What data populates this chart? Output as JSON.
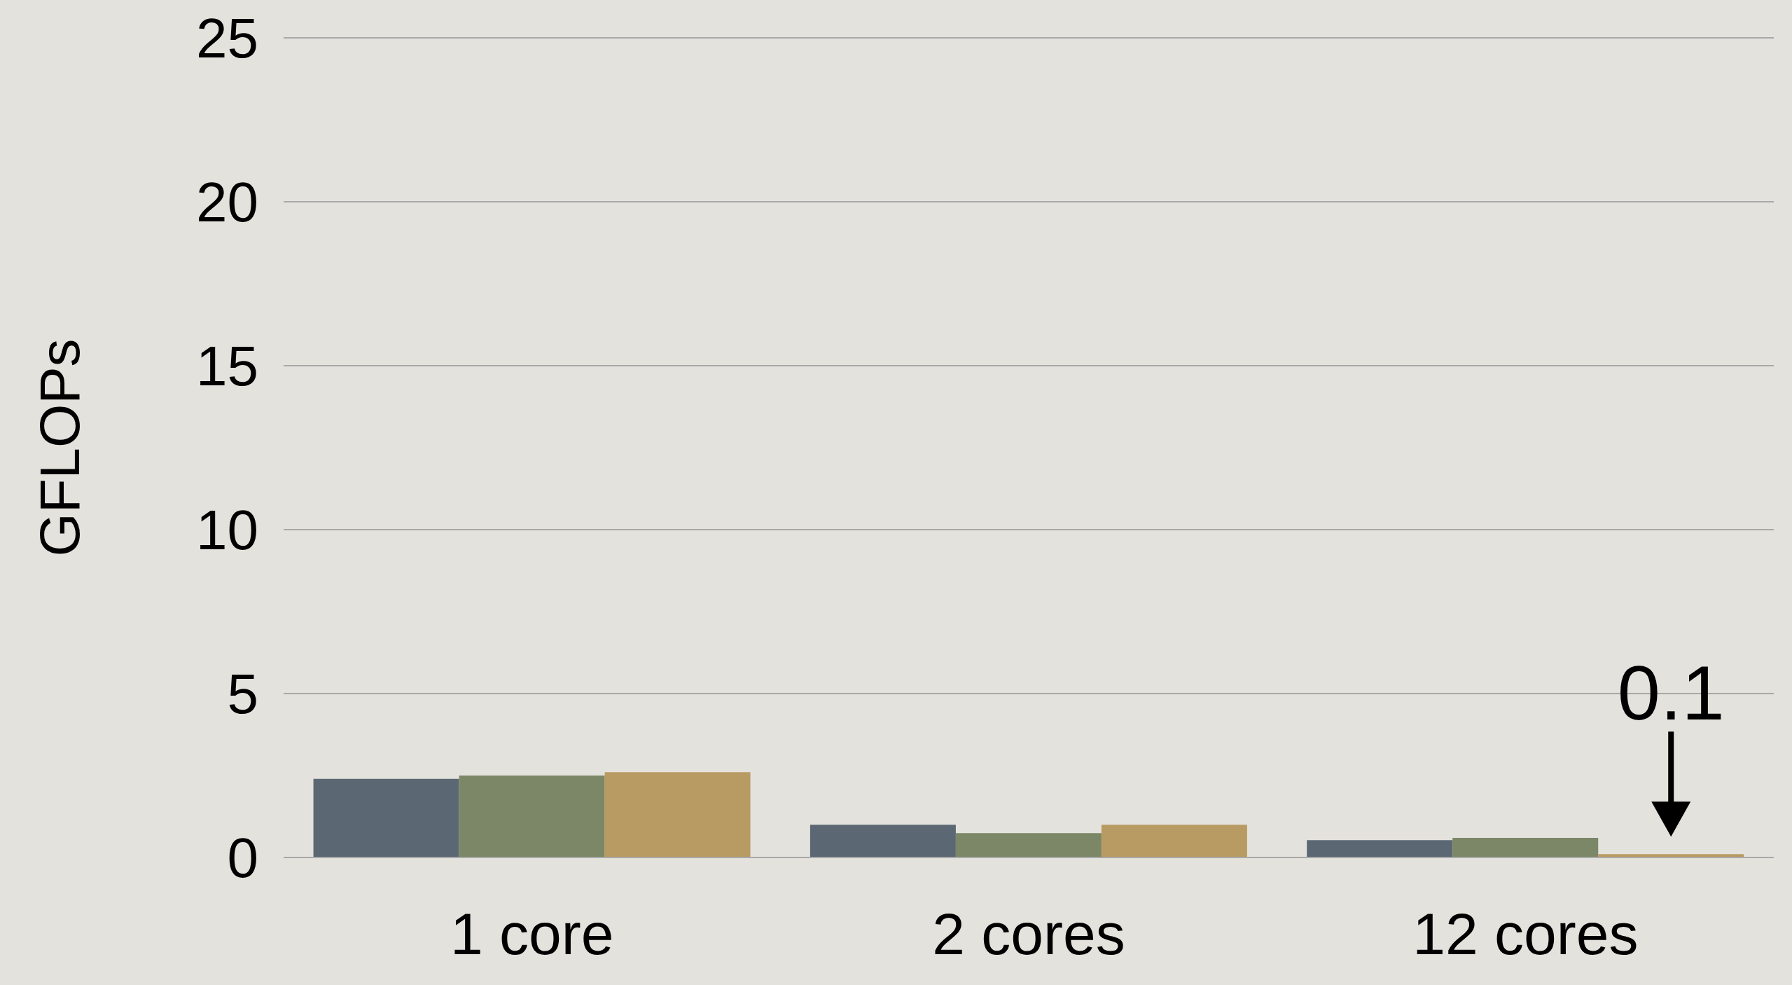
{
  "chart_data": {
    "type": "bar",
    "ylabel": "GFLOPs",
    "categories": [
      "1 core",
      "2 cores",
      "12 cores"
    ],
    "series": [
      {
        "color": "#5b6873",
        "values": [
          2.4,
          1.0,
          0.53
        ]
      },
      {
        "color": "#7b8766",
        "values": [
          2.5,
          0.74,
          0.6
        ]
      },
      {
        "color": "#b89a63",
        "values": [
          2.6,
          1.0,
          0.1
        ]
      }
    ],
    "ylim": [
      0,
      25
    ],
    "yticks": [
      0,
      5,
      10,
      15,
      20,
      25
    ],
    "grid": "y",
    "legend": false,
    "annotations": [
      {
        "text": "0.1",
        "x": "12 cores",
        "y": 0.1
      }
    ]
  }
}
